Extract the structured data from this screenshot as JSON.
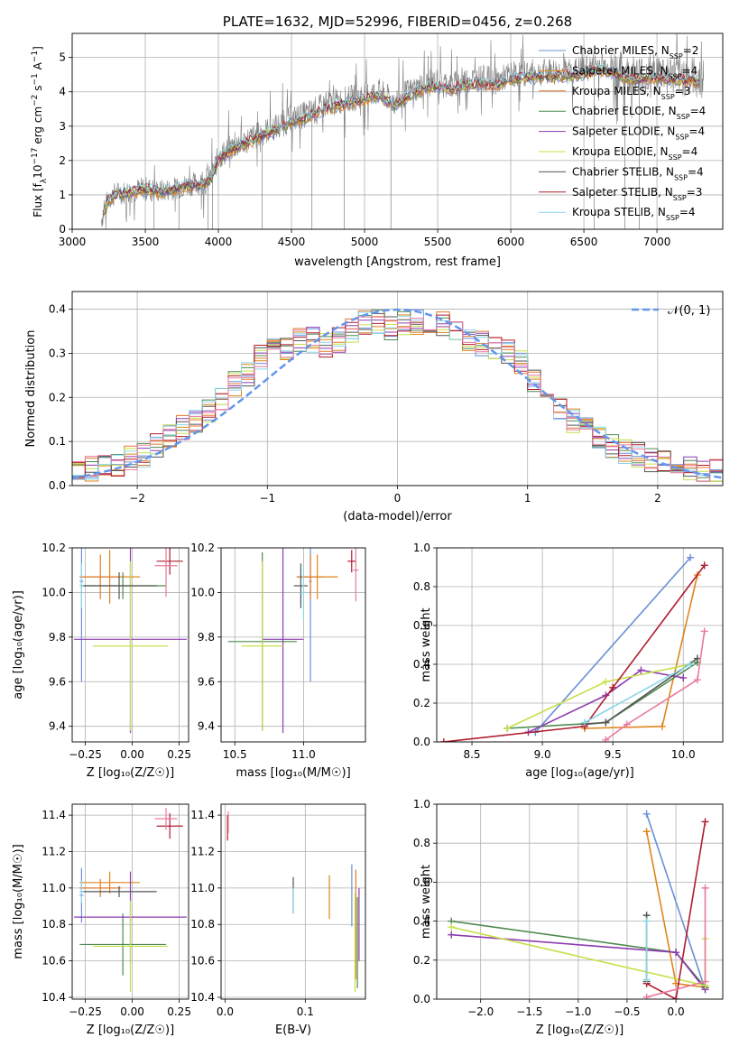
{
  "colors": {
    "Chabrier MILES": "#6a8fd8",
    "Salpeter MILES": "#e0851b",
    "Kroupa MILES": "#e07a2b",
    "Chabrier ELODIE": "#4f8a4f",
    "Salpeter ELODIE": "#8d3cb0",
    "Kroupa ELODIE": "#c6e04a",
    "Chabrier STELIB": "#555555",
    "Salpeter STELIB": "#b01c2e",
    "Kroupa STELIB": "#8ad6e8",
    "pink": "#e8799e",
    "normal": "#6495ed",
    "data": "#7f7f7f",
    "grid": "#b0b0b0"
  },
  "chart_data": [
    {
      "type": "line",
      "title": "PLATE=1632, MJD=52996, FIBERID=0456, z=0.268",
      "xlabel": "wavelength [Angstrom, rest frame]",
      "ylabel": "Flux [f_λ 10^-17 erg cm^-2 s^-1 A^-1]",
      "xlim": [
        3000,
        7450
      ],
      "ylim": [
        0,
        5.7
      ],
      "xticks": [
        "3000",
        "3500",
        "4000",
        "4500",
        "5000",
        "5500",
        "6000",
        "6500",
        "7000"
      ],
      "yticks": [
        "0",
        "1",
        "2",
        "3",
        "4",
        "5"
      ],
      "grid": true,
      "legend_position": "top-right",
      "spectrum_x": [
        3200,
        3250,
        3300,
        3400,
        3500,
        3600,
        3700,
        3800,
        3900,
        3950,
        4000,
        4100,
        4200,
        4300,
        4400,
        4500,
        4600,
        4700,
        4800,
        4900,
        5000,
        5100,
        5200,
        5300,
        5400,
        5500,
        5600,
        5700,
        5800,
        5900,
        6000,
        6100,
        6200,
        6300,
        6400,
        6500,
        6600,
        6700,
        6800,
        6900,
        7000,
        7100,
        7200,
        7300
      ],
      "spectrum_y": [
        0.3,
        0.9,
        1.05,
        1.1,
        1.2,
        1.1,
        1.2,
        1.3,
        1.35,
        1.5,
        2.1,
        2.4,
        2.6,
        2.8,
        3.0,
        3.2,
        3.35,
        3.55,
        3.7,
        3.8,
        3.9,
        4.0,
        3.7,
        4.0,
        4.2,
        4.3,
        4.2,
        4.35,
        4.4,
        4.3,
        4.5,
        4.55,
        4.55,
        4.6,
        4.6,
        4.65,
        4.8,
        4.7,
        4.5,
        4.5,
        4.55,
        4.5,
        4.45,
        4.4
      ],
      "series": [
        {
          "name": "Chabrier MILES",
          "nssp": "2"
        },
        {
          "name": "Salpeter MILES",
          "nssp": "4"
        },
        {
          "name": "Kroupa MILES",
          "nssp": "3"
        },
        {
          "name": "Chabrier ELODIE",
          "nssp": "4"
        },
        {
          "name": "Salpeter ELODIE",
          "nssp": "4"
        },
        {
          "name": "Kroupa ELODIE",
          "nssp": "4"
        },
        {
          "name": "Chabrier STELIB",
          "nssp": "4"
        },
        {
          "name": "Salpeter STELIB",
          "nssp": "3"
        },
        {
          "name": "Kroupa STELIB",
          "nssp": "4"
        }
      ]
    },
    {
      "type": "bar",
      "xlabel": "(data-model)/error",
      "ylabel": "Normed distribution",
      "xlim": [
        -2.5,
        2.5
      ],
      "ylim": [
        0,
        0.44
      ],
      "xticks": [
        "−2",
        "−1",
        "0",
        "1",
        "2"
      ],
      "yticks": [
        "0.0",
        "0.1",
        "0.2",
        "0.3",
        "0.4"
      ],
      "grid": true,
      "legend": "𝒩(0, 1)",
      "legend_position": "top-right",
      "bin_centers": [
        -2.45,
        -2.35,
        -2.25,
        -2.15,
        -2.05,
        -1.95,
        -1.85,
        -1.75,
        -1.65,
        -1.55,
        -1.45,
        -1.35,
        -1.25,
        -1.15,
        -1.05,
        -0.95,
        -0.85,
        -0.75,
        -0.65,
        -0.55,
        -0.45,
        -0.35,
        -0.25,
        -0.15,
        -0.05,
        0.05,
        0.15,
        0.25,
        0.35,
        0.45,
        0.55,
        0.65,
        0.75,
        0.85,
        0.95,
        1.05,
        1.15,
        1.25,
        1.35,
        1.45,
        1.55,
        1.65,
        1.75,
        1.85,
        1.95,
        2.05,
        2.15,
        2.25,
        2.35,
        2.45
      ],
      "histogram_profile": [
        0.03,
        0.04,
        0.04,
        0.05,
        0.06,
        0.07,
        0.09,
        0.11,
        0.13,
        0.15,
        0.17,
        0.2,
        0.23,
        0.25,
        0.29,
        0.31,
        0.31,
        0.33,
        0.33,
        0.32,
        0.33,
        0.35,
        0.37,
        0.37,
        0.36,
        0.37,
        0.37,
        0.37,
        0.37,
        0.35,
        0.33,
        0.32,
        0.31,
        0.3,
        0.28,
        0.24,
        0.2,
        0.18,
        0.15,
        0.13,
        0.11,
        0.09,
        0.08,
        0.07,
        0.06,
        0.05,
        0.05,
        0.04,
        0.03,
        0.03
      ]
    },
    {
      "type": "scatter",
      "xlabel": "Z [log₁₀(Z/Z☉)]",
      "ylabel": "age  [log₁₀(age/yr)]",
      "xlim": [
        -0.32,
        0.3
      ],
      "ylim": [
        9.33,
        10.2
      ],
      "xticks": [
        "−0.25",
        "0.00",
        "0.25"
      ],
      "yticks": [
        "9.4",
        "9.6",
        "9.8",
        "10.0",
        "10.2"
      ],
      "points": [
        {
          "series": "Chabrier MILES",
          "x": -0.27,
          "y": 10.05,
          "xerr": 0.01,
          "yerr": 0.45
        },
        {
          "series": "Salpeter MILES",
          "x": -0.12,
          "y": 10.07,
          "xerr": 0.16,
          "yerr": 0.12
        },
        {
          "series": "Kroupa MILES",
          "x": -0.17,
          "y": 10.07,
          "xerr": 0.11,
          "yerr": 0.1
        },
        {
          "series": "Chabrier ELODIE",
          "x": -0.05,
          "y": 10.03,
          "xerr": 0.23,
          "yerr": 0.06
        },
        {
          "series": "Salpeter ELODIE",
          "x": -0.01,
          "y": 9.79,
          "xerr": 0.3,
          "yerr": 0.42
        },
        {
          "series": "Kroupa ELODIE",
          "x": -0.01,
          "y": 9.76,
          "xerr": 0.2,
          "yerr": 0.38
        },
        {
          "series": "Chabrier STELIB",
          "x": -0.07,
          "y": 10.03,
          "xerr": 0.2,
          "yerr": 0.06
        },
        {
          "series": "Salpeter STELIB",
          "x": 0.2,
          "y": 10.14,
          "xerr": 0.07,
          "yerr": 0.06
        },
        {
          "series": "Kroupa STELIB",
          "x": -0.27,
          "y": 10.03,
          "xerr": 0.01,
          "yerr": 0.1
        },
        {
          "series": "pink",
          "x": 0.18,
          "y": 10.12,
          "xerr": 0.06,
          "yerr": 0.14
        }
      ]
    },
    {
      "type": "scatter",
      "xlabel": "mass [log₁₀(M/M☉)]",
      "xlim": [
        10.4,
        11.45
      ],
      "ylim": [
        9.33,
        10.2
      ],
      "xticks": [
        "10.5",
        "11.0"
      ],
      "yticks": [
        "9.4",
        "9.6",
        "9.8",
        "10.0",
        "10.2"
      ],
      "points": [
        {
          "series": "Chabrier MILES",
          "x": 11.05,
          "y": 10.05,
          "xerr": 0.01,
          "yerr": 0.45
        },
        {
          "series": "Salpeter MILES",
          "x": 11.1,
          "y": 10.07,
          "xerr": 0.15,
          "yerr": 0.1
        },
        {
          "series": "Kroupa MILES",
          "x": 11.05,
          "y": 10.07,
          "xerr": 0.1,
          "yerr": 0.1
        },
        {
          "series": "Chabrier ELODIE",
          "x": 10.7,
          "y": 9.78,
          "xerr": 0.25,
          "yerr": 0.4
        },
        {
          "series": "Salpeter ELODIE",
          "x": 10.85,
          "y": 9.79,
          "xerr": 0.15,
          "yerr": 0.42
        },
        {
          "series": "Kroupa ELODIE",
          "x": 10.7,
          "y": 9.76,
          "xerr": 0.15,
          "yerr": 0.38
        },
        {
          "series": "Chabrier STELIB",
          "x": 10.98,
          "y": 10.03,
          "xerr": 0.05,
          "yerr": 0.1
        },
        {
          "series": "Salpeter STELIB",
          "x": 11.35,
          "y": 10.14,
          "xerr": 0.03,
          "yerr": 0.05
        },
        {
          "series": "Kroupa STELIB",
          "x": 11.0,
          "y": 10.0,
          "xerr": 0.02,
          "yerr": 0.12
        },
        {
          "series": "pink",
          "x": 11.38,
          "y": 10.1,
          "xerr": 0.02,
          "yerr": 0.14
        }
      ]
    },
    {
      "type": "line",
      "xlabel": "age  [log₁₀(age/yr)]",
      "ylabel": "mass weight",
      "xlim": [
        8.25,
        10.28
      ],
      "ylim": [
        0,
        1.0
      ],
      "xticks": [
        "8.5",
        "9.0",
        "9.5",
        "10.0"
      ],
      "yticks": [
        "0.0",
        "0.2",
        "0.4",
        "0.6",
        "0.8",
        "1.0"
      ],
      "series": [
        {
          "name": "Chabrier MILES",
          "x": [
            8.95,
            10.05
          ],
          "y": [
            0.05,
            0.95
          ]
        },
        {
          "name": "Salpeter MILES",
          "x": [
            9.3,
            9.85,
            10.1
          ],
          "y": [
            0.07,
            0.08,
            0.86
          ]
        },
        {
          "name": "Chabrier ELODIE",
          "x": [
            8.75,
            9.45,
            10.1
          ],
          "y": [
            0.07,
            0.1,
            0.41
          ]
        },
        {
          "name": "Salpeter ELODIE",
          "x": [
            8.9,
            9.45,
            9.7,
            10.0
          ],
          "y": [
            0.05,
            0.24,
            0.37,
            0.33
          ]
        },
        {
          "name": "Kroupa ELODIE",
          "x": [
            8.75,
            9.45,
            10.05
          ],
          "y": [
            0.07,
            0.31,
            0.4
          ]
        },
        {
          "name": "Chabrier STELIB",
          "x": [
            9.3,
            9.45,
            10.1
          ],
          "y": [
            0.09,
            0.1,
            0.43
          ]
        },
        {
          "name": "Salpeter STELIB",
          "x": [
            8.3,
            9.3,
            9.5,
            10.15
          ],
          "y": [
            0.0,
            0.08,
            0.28,
            0.91
          ]
        },
        {
          "name": "Kroupa STELIB",
          "x": [
            9.3,
            10.05
          ],
          "y": [
            0.1,
            0.4
          ]
        },
        {
          "name": "pink",
          "x": [
            9.45,
            9.6,
            10.1,
            10.15
          ],
          "y": [
            0.01,
            0.09,
            0.32,
            0.57
          ]
        }
      ]
    },
    {
      "type": "scatter",
      "xlabel": "Z [log₁₀(Z/Z☉)]",
      "ylabel": "mass [log₁₀(M/M☉)]",
      "xlim": [
        -0.32,
        0.3
      ],
      "ylim": [
        10.39,
        11.46
      ],
      "xticks": [
        "−0.25",
        "0.00",
        "0.25"
      ],
      "yticks": [
        "10.4",
        "10.6",
        "10.8",
        "11.0",
        "11.2",
        "11.4"
      ],
      "points": [
        {
          "series": "Chabrier MILES",
          "x": -0.27,
          "y": 10.96,
          "xerr": 0.01,
          "yerr": 0.15
        },
        {
          "series": "Salpeter MILES",
          "x": -0.12,
          "y": 11.03,
          "xerr": 0.16,
          "yerr": 0.06
        },
        {
          "series": "Kroupa MILES",
          "x": -0.17,
          "y": 11.0,
          "xerr": 0.11,
          "yerr": 0.05
        },
        {
          "series": "Chabrier ELODIE",
          "x": -0.05,
          "y": 10.69,
          "xerr": 0.23,
          "yerr": 0.17
        },
        {
          "series": "Salpeter ELODIE",
          "x": -0.01,
          "y": 10.84,
          "xerr": 0.3,
          "yerr": 0.25
        },
        {
          "series": "Kroupa ELODIE",
          "x": -0.01,
          "y": 10.68,
          "xerr": 0.2,
          "yerr": 0.25
        },
        {
          "series": "Chabrier STELIB",
          "x": -0.07,
          "y": 10.98,
          "xerr": 0.2,
          "yerr": 0.03
        },
        {
          "series": "Salpeter STELIB",
          "x": 0.2,
          "y": 11.34,
          "xerr": 0.07,
          "yerr": 0.07
        },
        {
          "series": "Kroupa STELIB",
          "x": -0.27,
          "y": 10.98,
          "xerr": 0.01,
          "yerr": 0.06
        },
        {
          "series": "pink",
          "x": 0.18,
          "y": 11.38,
          "xerr": 0.06,
          "yerr": 0.06
        }
      ]
    },
    {
      "type": "scatter",
      "xlabel": "E(B-V)",
      "xlim": [
        -0.005,
        0.175
      ],
      "ylim": [
        10.39,
        11.46
      ],
      "xticks": [
        "0.0",
        "0.1"
      ],
      "yticks": [
        "10.4",
        "10.6",
        "10.8",
        "11.0",
        "11.2",
        "11.4"
      ],
      "points": [
        {
          "series": "Chabrier MILES",
          "x": 0.158,
          "y": 10.96,
          "yerr": 0.17
        },
        {
          "series": "Salpeter MILES",
          "x": 0.13,
          "y": 10.95,
          "yerr": 0.12
        },
        {
          "series": "Kroupa MILES",
          "x": 0.163,
          "y": 10.8,
          "yerr": 0.3
        },
        {
          "series": "Chabrier ELODIE",
          "x": 0.165,
          "y": 10.7,
          "yerr": 0.25
        },
        {
          "series": "Salpeter ELODIE",
          "x": 0.167,
          "y": 10.8,
          "yerr": 0.2
        },
        {
          "series": "Kroupa ELODIE",
          "x": 0.162,
          "y": 10.7,
          "yerr": 0.27
        },
        {
          "series": "Chabrier STELIB",
          "x": 0.085,
          "y": 10.96,
          "yerr": 0.1
        },
        {
          "series": "Salpeter STELIB",
          "x": 0.003,
          "y": 11.33,
          "yerr": 0.07
        },
        {
          "series": "Kroupa STELIB",
          "x": 0.085,
          "y": 10.93,
          "yerr": 0.07
        },
        {
          "series": "pink",
          "x": 0.004,
          "y": 11.36,
          "yerr": 0.06
        }
      ]
    },
    {
      "type": "line",
      "xlabel": "Z [log₁₀(Z/Z☉)]",
      "ylabel": "mass weight",
      "xlim": [
        -2.45,
        0.48
      ],
      "ylim": [
        0,
        1.0
      ],
      "xticks": [
        "−2.0",
        "−1.5",
        "−1.0",
        "−0.5",
        "0.0"
      ],
      "yticks": [
        "0.0",
        "0.2",
        "0.4",
        "0.6",
        "0.8",
        "1.0"
      ],
      "series": [
        {
          "name": "Chabrier MILES",
          "x": [
            -0.3,
            0.3
          ],
          "y": [
            0.95,
            0.05
          ]
        },
        {
          "name": "Salpeter MILES",
          "x": [
            -0.3,
            0.0,
            0.3
          ],
          "y": [
            0.86,
            0.08,
            0.06
          ]
        },
        {
          "name": "Chabrier ELODIE",
          "x": [
            -2.3,
            0.0,
            0.3
          ],
          "y": [
            0.4,
            0.24,
            0.06
          ]
        },
        {
          "name": "Salpeter ELODIE",
          "x": [
            -2.3,
            0.0,
            0.3
          ],
          "y": [
            0.33,
            0.24,
            0.05
          ]
        },
        {
          "name": "Kroupa ELODIE",
          "x": [
            -2.3,
            0.3,
            0.3
          ],
          "y": [
            0.37,
            0.07,
            0.31
          ]
        },
        {
          "name": "Chabrier STELIB",
          "x": [
            -0.3,
            -0.3
          ],
          "y": [
            0.43,
            0.09
          ]
        },
        {
          "name": "Salpeter STELIB",
          "x": [
            -0.3,
            0.0,
            0.3
          ],
          "y": [
            0.08,
            0.0,
            0.91
          ]
        },
        {
          "name": "Kroupa STELIB",
          "x": [
            -0.3,
            -0.3
          ],
          "y": [
            0.1,
            0.4
          ]
        },
        {
          "name": "pink",
          "x": [
            -0.3,
            0.3,
            0.3
          ],
          "y": [
            0.01,
            0.09,
            0.57
          ]
        }
      ]
    }
  ]
}
